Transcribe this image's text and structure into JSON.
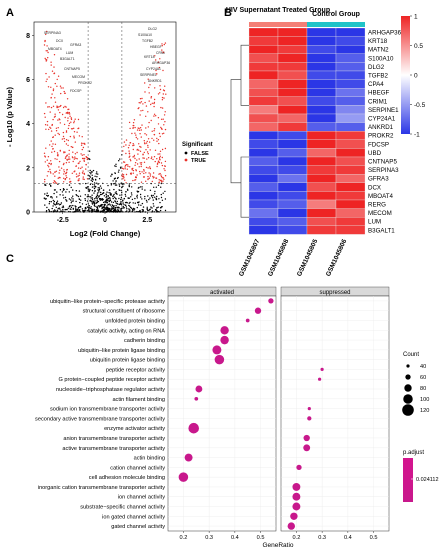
{
  "panels": {
    "a": "A",
    "b": "B",
    "c": "C"
  },
  "volcano": {
    "type": "scatter",
    "xlabel": "Log2 (Fold Change)",
    "ylabel": "- Log10 (p Value)",
    "xticks": [
      -2.5,
      0,
      2.5
    ],
    "yticks": [
      0,
      2,
      4,
      6,
      8
    ],
    "xlim": [
      -4.2,
      4.2
    ],
    "ylim": [
      0,
      8.6
    ],
    "threshold_x": [
      -1,
      1
    ],
    "threshold_y": 1.3,
    "legend": {
      "title": "Significant",
      "items": [
        "FALSE",
        "TRUE"
      ]
    },
    "colors": {
      "FALSE": "#000000",
      "TRUE": "#e8312a"
    },
    "labels_left": [
      "SERPINA3",
      "DCX",
      "GFRA3",
      "MBOAT4",
      "LUM",
      "B3GALT1",
      "CNTNAP5",
      "MECOM",
      "PROKR2",
      "FDCSP"
    ],
    "labels_right": [
      "DLG2",
      "S100A10",
      "TGFB2",
      "HBEGF",
      "CPA4",
      "KRT18",
      "ARHGAP36",
      "CYP24A1",
      "SERPINE1",
      "ANKRD1"
    ]
  },
  "heatmap": {
    "type": "heatmap",
    "groups": [
      "HIV Supernatant Treated Group",
      "Control Group"
    ],
    "group_colors": [
      "#f47f76",
      "#1fc3c8"
    ],
    "samples": [
      "GSM1045807",
      "GSM1045808",
      "GSM1045805",
      "GSM1045806"
    ],
    "genes": [
      "ARHGAP36",
      "KRT18",
      "MATN2",
      "S100A10",
      "DLG2",
      "TGFB2",
      "CPA4",
      "HBEGF",
      "CRIM1",
      "SERPINE1",
      "CYP24A1",
      "ANKRD1",
      "PROKR2",
      "FDCSP",
      "UBD",
      "CNTNAP5",
      "SERPINA3",
      "GFRA3",
      "DCX",
      "MBOAT4",
      "RERG",
      "MECOM",
      "LUM",
      "B3GALT1"
    ],
    "values": [
      [
        1.0,
        1.0,
        -1.0,
        -1.0
      ],
      [
        0.9,
        1.0,
        -1.0,
        -0.9
      ],
      [
        1.0,
        0.9,
        -0.9,
        -1.0
      ],
      [
        0.8,
        1.0,
        -1.0,
        -0.8
      ],
      [
        0.9,
        0.9,
        -1.0,
        -0.8
      ],
      [
        1.0,
        0.8,
        -0.9,
        -0.9
      ],
      [
        0.7,
        1.2,
        -1.0,
        -0.9
      ],
      [
        0.8,
        1.0,
        -1.1,
        -0.7
      ],
      [
        0.9,
        0.8,
        -0.9,
        -0.8
      ],
      [
        0.6,
        1.1,
        -1.1,
        -0.6
      ],
      [
        0.8,
        0.7,
        -1.0,
        -0.5
      ],
      [
        0.7,
        0.9,
        -0.8,
        -0.8
      ],
      [
        -1.0,
        -0.9,
        1.0,
        0.9
      ],
      [
        -0.9,
        -1.0,
        1.1,
        0.8
      ],
      [
        -1.0,
        -0.8,
        0.7,
        1.1
      ],
      [
        -0.8,
        -1.0,
        1.0,
        0.8
      ],
      [
        -0.9,
        -0.9,
        0.9,
        0.9
      ],
      [
        -1.0,
        -0.7,
        1.0,
        0.7
      ],
      [
        -0.8,
        -1.0,
        0.8,
        1.0
      ],
      [
        -1.0,
        -0.9,
        1.0,
        0.9
      ],
      [
        -0.9,
        -0.8,
        0.6,
        1.1
      ],
      [
        -0.7,
        -1.0,
        1.0,
        0.7
      ],
      [
        -0.9,
        -0.8,
        0.8,
        0.9
      ],
      [
        -1.0,
        -0.9,
        0.9,
        0.9
      ]
    ],
    "scale_ticks": [
      1,
      0.5,
      0,
      -0.5,
      -1
    ],
    "colors": {
      "high": "#ee2424",
      "mid": "#ffffff",
      "low": "#2b36e6"
    }
  },
  "dotplot": {
    "type": "scatter",
    "facets": [
      "activated",
      "suppressed"
    ],
    "xlabel": "GeneRatio",
    "xticks_left": [
      0.2,
      0.3,
      0.4,
      0.5
    ],
    "xticks_right": [
      0.2,
      0.3,
      0.4,
      0.5
    ],
    "xlim": [
      0.14,
      0.56
    ],
    "terms": [
      "ubiquitin−like protein−specific protease activity",
      "structural constituent of ribosome",
      "unfolded protein binding",
      "catalytic activity, acting on RNA",
      "cadherin binding",
      "ubiquitin−like protein ligase binding",
      "ubiquitin protein ligase binding",
      "peptide receptor activity",
      "G protein−coupled peptide receptor activity",
      "nucleoside−triphosphatase regulator activity",
      "actin filament binding",
      "sodium ion transmembrane transporter activity",
      "secondary active transmembrane transporter activity",
      "enzyme activator activity",
      "anion transmembrane transporter activity",
      "active transmembrane transporter activity",
      "actin binding",
      "cation channel activity",
      "cell adhesion molecule binding",
      "inorganic cation transmembrane transporter activity",
      "ion channel activity",
      "substrate−specific channel activity",
      "ion gated channel activity",
      "gated channel activity"
    ],
    "activated": [
      {
        "term": 0,
        "ratio": 0.54,
        "count": 60
      },
      {
        "term": 1,
        "ratio": 0.49,
        "count": 70
      },
      {
        "term": 2,
        "ratio": 0.45,
        "count": 45
      },
      {
        "term": 3,
        "ratio": 0.36,
        "count": 90
      },
      {
        "term": 4,
        "ratio": 0.36,
        "count": 90
      },
      {
        "term": 5,
        "ratio": 0.33,
        "count": 95
      },
      {
        "term": 6,
        "ratio": 0.34,
        "count": 100
      },
      {
        "term": 9,
        "ratio": 0.26,
        "count": 75
      },
      {
        "term": 10,
        "ratio": 0.25,
        "count": 45
      },
      {
        "term": 13,
        "ratio": 0.24,
        "count": 110
      },
      {
        "term": 16,
        "ratio": 0.22,
        "count": 85
      },
      {
        "term": 18,
        "ratio": 0.2,
        "count": 100
      }
    ],
    "suppressed": [
      {
        "term": 7,
        "ratio": 0.3,
        "count": 40
      },
      {
        "term": 8,
        "ratio": 0.29,
        "count": 40
      },
      {
        "term": 11,
        "ratio": 0.25,
        "count": 40
      },
      {
        "term": 12,
        "ratio": 0.25,
        "count": 50
      },
      {
        "term": 14,
        "ratio": 0.24,
        "count": 70
      },
      {
        "term": 15,
        "ratio": 0.24,
        "count": 75
      },
      {
        "term": 17,
        "ratio": 0.21,
        "count": 60
      },
      {
        "term": 19,
        "ratio": 0.2,
        "count": 85
      },
      {
        "term": 20,
        "ratio": 0.2,
        "count": 85
      },
      {
        "term": 21,
        "ratio": 0.2,
        "count": 85
      },
      {
        "term": 22,
        "ratio": 0.19,
        "count": 80
      },
      {
        "term": 23,
        "ratio": 0.18,
        "count": 80
      }
    ],
    "count_legend": {
      "title": "Count",
      "values": [
        40,
        60,
        80,
        100,
        120
      ]
    },
    "padj_legend": {
      "title": "p.adjust",
      "value": "0.024112"
    },
    "dot_color": "#c8188c"
  }
}
